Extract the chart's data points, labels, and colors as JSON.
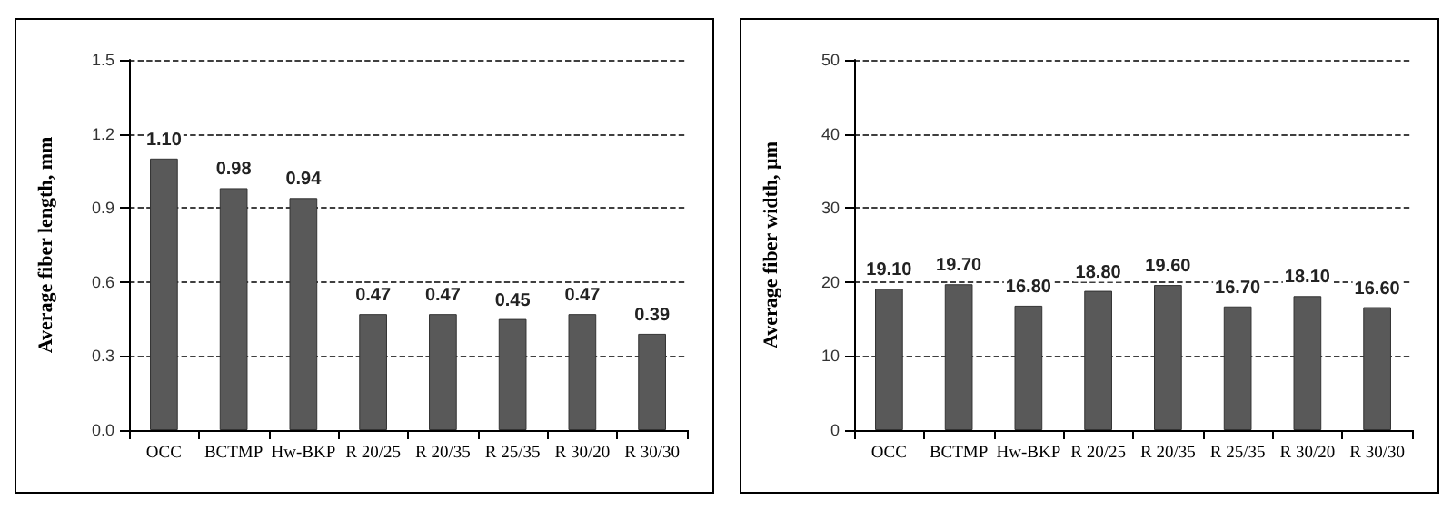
{
  "chart_data": [
    {
      "type": "bar",
      "ylabel": "Average fiber length, mm",
      "categories": [
        "OCC",
        "BCTMP",
        "Hw-BKP",
        "R 20/25",
        "R 20/35",
        "R 25/35",
        "R 30/20",
        "R 30/30"
      ],
      "values": [
        1.1,
        0.98,
        0.94,
        0.47,
        0.47,
        0.45,
        0.47,
        0.39
      ],
      "value_labels": [
        "1.10",
        "0.98",
        "0.94",
        "0.47",
        "0.47",
        "0.45",
        "0.47",
        "0.39"
      ],
      "color": "#595959",
      "ylim": [
        0,
        1.5
      ],
      "yticks": [
        {
          "value": 0,
          "label": "0.0"
        },
        {
          "value": 0.3,
          "label": "0.3"
        },
        {
          "value": 0.6,
          "label": "0.6"
        },
        {
          "value": 0.9,
          "label": "0.9"
        },
        {
          "value": 1.2,
          "label": "1.2"
        },
        {
          "value": 1.5,
          "label": "1.5"
        }
      ],
      "grid": "y"
    },
    {
      "type": "bar",
      "ylabel": "Average fiber width, µm",
      "categories": [
        "OCC",
        "BCTMP",
        "Hw-BKP",
        "R 20/25",
        "R 20/35",
        "R 25/35",
        "R 30/20",
        "R 30/30"
      ],
      "values": [
        19.1,
        19.7,
        16.8,
        18.8,
        19.6,
        16.7,
        18.1,
        16.6
      ],
      "value_labels": [
        "19.10",
        "19.70",
        "16.80",
        "18.80",
        "19.60",
        "16.70",
        "18.10",
        "16.60"
      ],
      "color": "#595959",
      "ylim": [
        0,
        50
      ],
      "yticks": [
        0,
        10,
        20,
        30,
        40,
        50
      ],
      "grid": "y"
    }
  ]
}
